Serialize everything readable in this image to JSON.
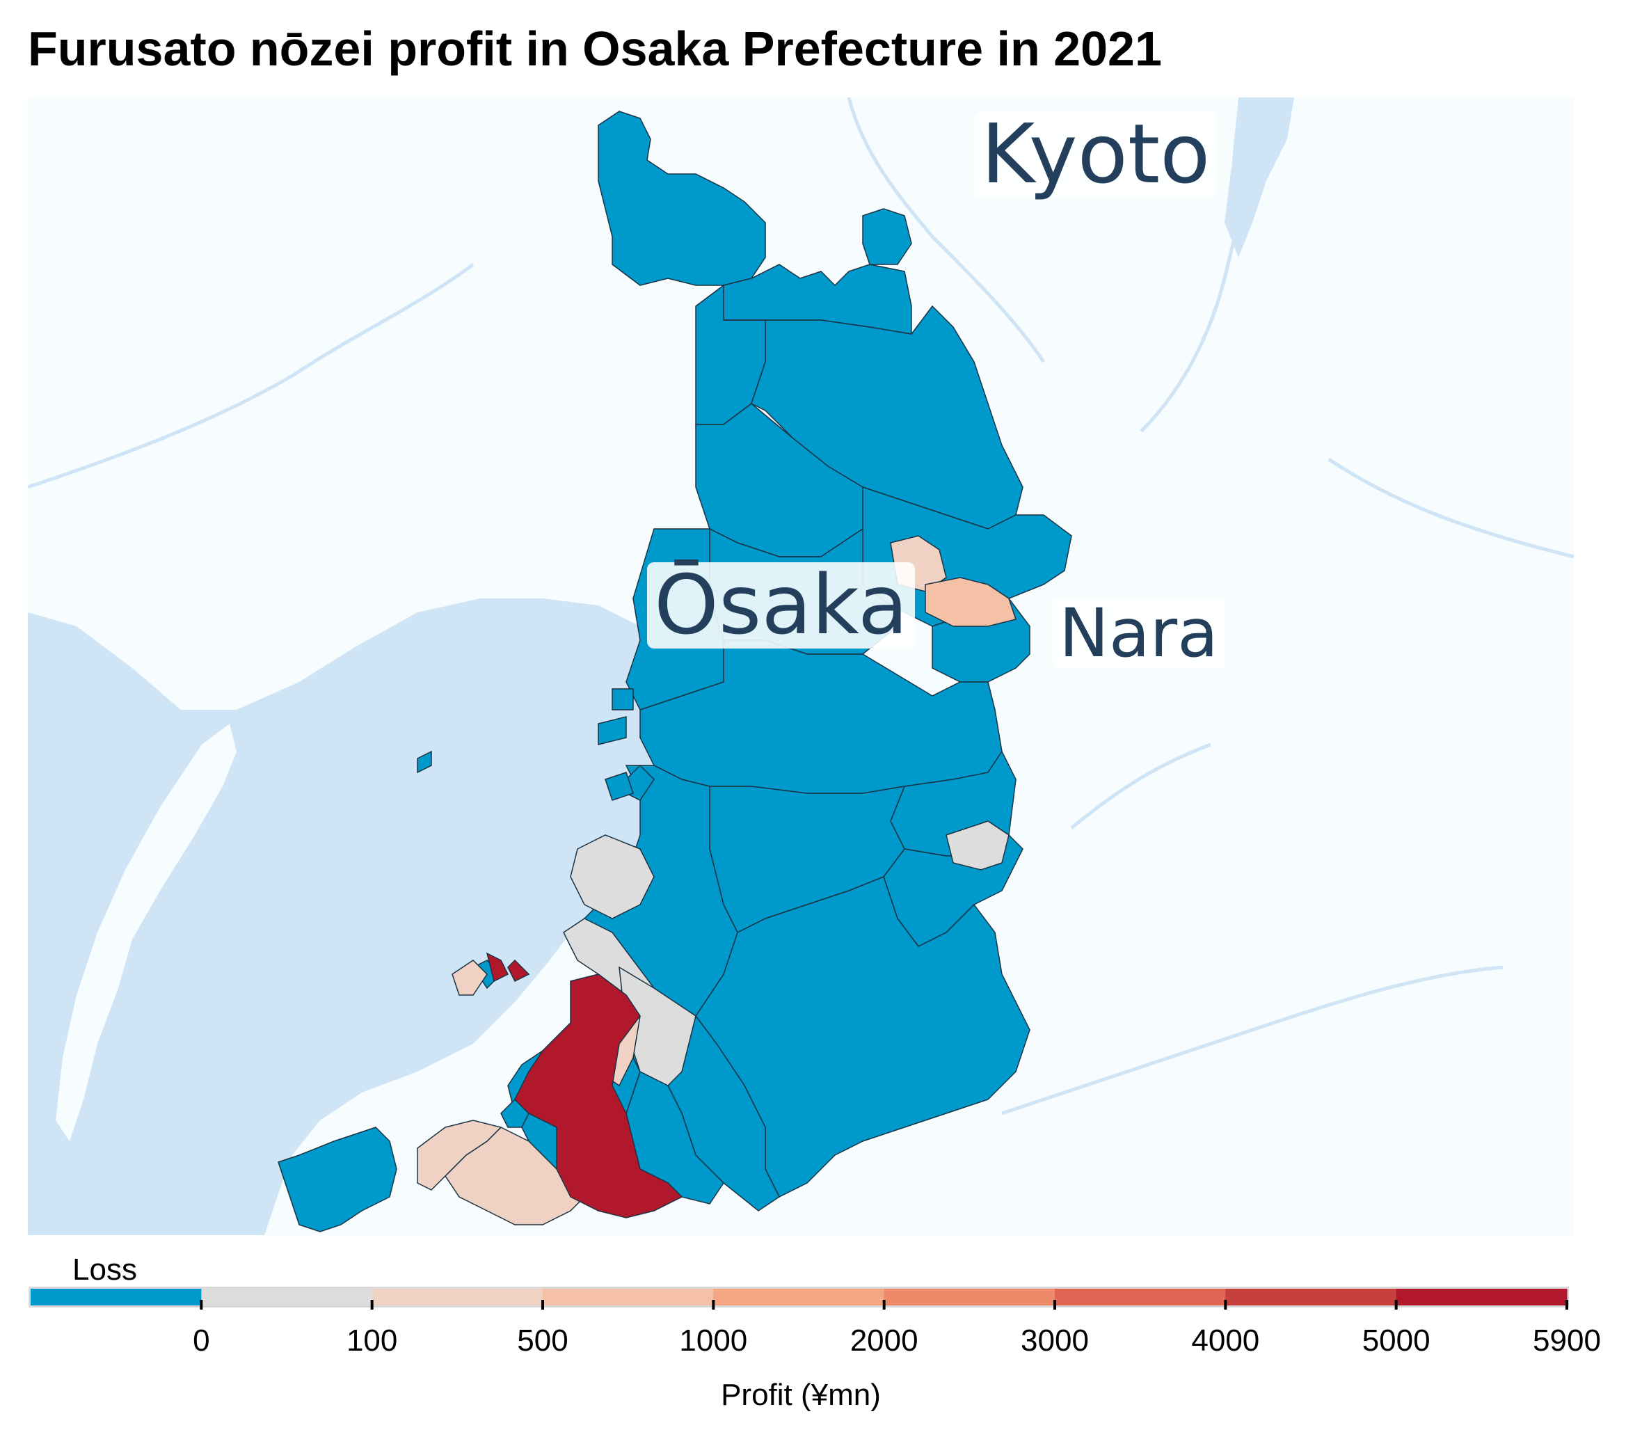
{
  "title": "Furusato nōzei profit in Osaka Prefecture in 2021",
  "labels": {
    "kyoto": "Kyoto",
    "osaka": "Ōsaka",
    "nara": "Nara"
  },
  "legend": {
    "loss_label": "Loss",
    "title": "Profit (¥mn)",
    "ticks": [
      "0",
      "100",
      "500",
      "1000",
      "2000",
      "3000",
      "4000",
      "5000",
      "5900"
    ],
    "bins": [
      {
        "range": "loss",
        "color": "#0099cc"
      },
      {
        "range": "0-100",
        "color": "#dddddd"
      },
      {
        "range": "100-500",
        "color": "#efd2c4"
      },
      {
        "range": "500-1000",
        "color": "#f4c0a6"
      },
      {
        "range": "1000-2000",
        "color": "#f4a582"
      },
      {
        "range": "2000-3000",
        "color": "#ee8a6a"
      },
      {
        "range": "3000-4000",
        "color": "#de6552"
      },
      {
        "range": "4000-5000",
        "color": "#c6403e"
      },
      {
        "range": "5000-5900",
        "color": "#b2182b"
      }
    ]
  },
  "colors": {
    "land": "#f7fcfe",
    "water": "#cfe4f4",
    "loss": "#0099cc",
    "profit_low": "#dddddd",
    "profit_mid": "#efd2c4",
    "profit_high": "#b2182b"
  }
}
